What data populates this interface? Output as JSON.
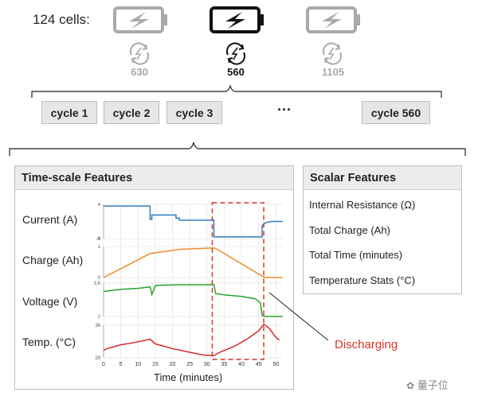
{
  "header": {
    "cells_label": "124 cells:"
  },
  "batteries": [
    {
      "count": "630",
      "active": false
    },
    {
      "count": "560",
      "active": true
    },
    {
      "count": "1105",
      "active": false
    }
  ],
  "cycles": {
    "items": [
      "cycle 1",
      "cycle 2",
      "cycle 3",
      "cycle 560"
    ],
    "ellipsis": "···"
  },
  "time_panel": {
    "title": "Time-scale Features",
    "features": [
      "Current (A)",
      "Charge (Ah)",
      "Voltage (V)",
      "Temp. (°C)"
    ],
    "xlabel": "Time (minutes)"
  },
  "scalar_panel": {
    "title": "Scalar Features",
    "items": [
      "Internal Resistance (Ω)",
      "Total Charge (Ah)",
      "Total Time (minutes)",
      "Temperature Stats (°C)"
    ]
  },
  "annotation": {
    "discharging": "Discharging"
  },
  "watermark": {
    "text": "量子位"
  },
  "colors": {
    "current": "#2f7fc1",
    "charge": "#f28a2e",
    "voltage": "#2ca02c",
    "temp": "#d62728",
    "discharge": "#d9342b"
  },
  "chart_data": {
    "type": "line",
    "xlabel": "Time (minutes)",
    "x_ticks": [
      0,
      5,
      10,
      15,
      20,
      25,
      30,
      35,
      40,
      45,
      50
    ],
    "xlim": [
      0,
      52
    ],
    "highlight_window": {
      "label": "Discharging",
      "x": [
        32,
        46
      ]
    },
    "series": [
      {
        "name": "Current (A)",
        "ylim": [
          -4,
          4
        ],
        "y_ticks": [
          "4",
          "0",
          "-4"
        ],
        "x": [
          0,
          13.5,
          13.5,
          14,
          14,
          21,
          21,
          22,
          22,
          32,
          32,
          46,
          46,
          47,
          48,
          49,
          52
        ],
        "y": [
          3.6,
          3.6,
          0.5,
          0.5,
          1.5,
          1.5,
          0.8,
          0.8,
          0.3,
          0.3,
          -3.6,
          -3.6,
          -1.0,
          -0.3,
          -0.1,
          0,
          0
        ]
      },
      {
        "name": "Charge (Ah)",
        "ylim": [
          0,
          1.1
        ],
        "y_ticks": [
          "1",
          "0"
        ],
        "x": [
          0,
          13.5,
          21,
          22,
          32,
          33,
          46,
          47,
          52
        ],
        "y": [
          0,
          0.85,
          0.98,
          1.0,
          1.05,
          1.0,
          0.05,
          0.0,
          0.0
        ]
      },
      {
        "name": "Voltage (V)",
        "ylim": [
          2.0,
          3.6
        ],
        "y_ticks": [
          "3.6",
          "2"
        ],
        "x": [
          0,
          5,
          10,
          13.5,
          14,
          14.5,
          15,
          17,
          21,
          22,
          32,
          32.5,
          35,
          40,
          44,
          45.5,
          46,
          47,
          52
        ],
        "y": [
          3.2,
          3.3,
          3.35,
          3.42,
          3.05,
          3.25,
          3.48,
          3.5,
          3.52,
          3.52,
          3.52,
          3.1,
          3.04,
          2.96,
          2.85,
          2.65,
          2.05,
          2.0,
          2.0
        ]
      },
      {
        "name": "Temp. (°C)",
        "ylim": [
          29,
          36
        ],
        "y_ticks": [
          "36",
          "29"
        ],
        "x": [
          0,
          1,
          5,
          9,
          13.5,
          15,
          20,
          25,
          29,
          32,
          34,
          38,
          42,
          45,
          46.5,
          48,
          50,
          51
        ],
        "y": [
          30.6,
          31.0,
          31.8,
          32.3,
          33.0,
          32.0,
          31.0,
          30.2,
          29.6,
          29.5,
          30.3,
          31.5,
          33.2,
          34.8,
          36.2,
          35.4,
          33.4,
          32.8
        ]
      }
    ]
  }
}
